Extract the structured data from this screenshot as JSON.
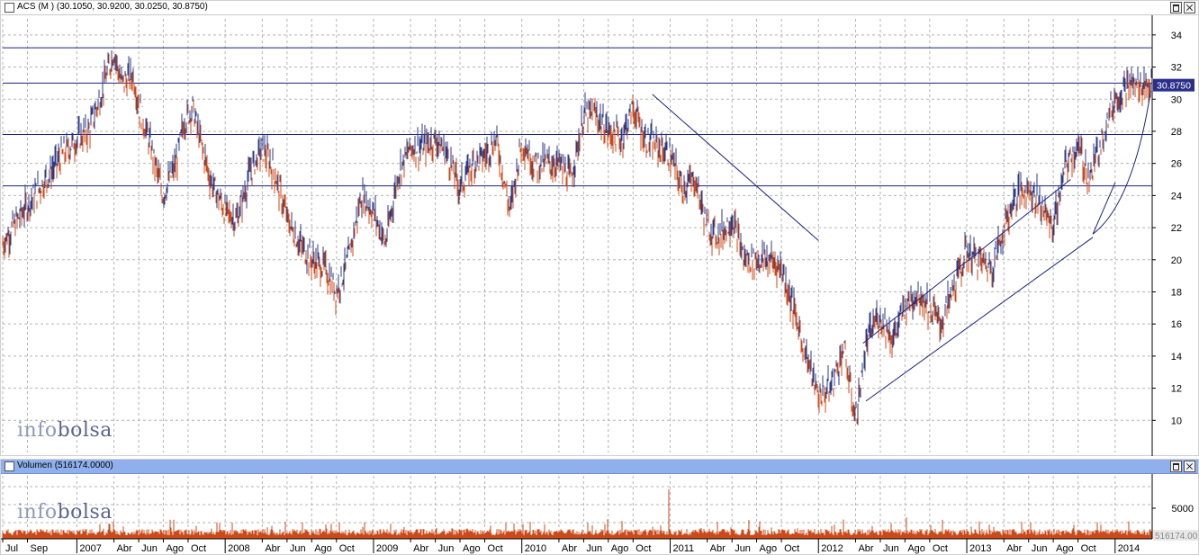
{
  "price_panel": {
    "title": "ACS (M ) (30.1050, 30.9200, 30.0250, 30.8750)",
    "last_price_label": "30.8750",
    "watermark_a": "info",
    "watermark_b": "bolsa"
  },
  "volume_panel": {
    "title": "Volumen (516174.0000)",
    "last_volume_label": "516174.00",
    "watermark_a": "info",
    "watermark_b": "bolsa"
  },
  "colors": {
    "up": "#2c3a86",
    "down": "#cc4a1a",
    "volume": "#cc4a1a",
    "trendline": "#1a237e",
    "grid": "#b4b4b4",
    "last_price_bg": "#2a2f8a"
  },
  "chart_data": [
    {
      "type": "line",
      "title": "ACS (M ) (30.1050, 30.9200, 30.0250, 30.8750)",
      "ylim": [
        8,
        35
      ],
      "y_ticks": [
        10,
        12,
        14,
        16,
        18,
        20,
        22,
        24,
        26,
        28,
        30,
        32,
        34
      ],
      "x_tick_labels": [
        "Jul",
        "Sep",
        "2007",
        "Abr",
        "Jun",
        "Ago",
        "Oct",
        "2008",
        "Abr",
        "Jun",
        "Ago",
        "Oct",
        "2009",
        "Abr",
        "Jun",
        "Ago",
        "Oct",
        "2010",
        "Abr",
        "Jun",
        "Ago",
        "Oct",
        "2011",
        "Abr",
        "Jun",
        "Ago",
        "Oct",
        "2012",
        "Abr",
        "Jun",
        "Ago",
        "Oct",
        "2013",
        "Abr",
        "Jun",
        "Ago",
        "Oct",
        "2014"
      ],
      "x_tick_dates": [
        2006.5,
        2006.667,
        2007.0,
        2007.25,
        2007.417,
        2007.583,
        2007.75,
        2008.0,
        2008.25,
        2008.417,
        2008.583,
        2008.75,
        2009.0,
        2009.25,
        2009.417,
        2009.583,
        2009.75,
        2010.0,
        2010.25,
        2010.417,
        2010.583,
        2010.75,
        2011.0,
        2011.25,
        2011.417,
        2011.583,
        2011.75,
        2012.0,
        2012.25,
        2012.417,
        2012.583,
        2012.75,
        2013.0,
        2013.25,
        2013.417,
        2013.583,
        2013.75,
        2014.0
      ],
      "x_range": [
        2006.5,
        2014.25
      ],
      "grid": true,
      "series": [
        {
          "x": [
            2006.5,
            2006.6,
            2006.75,
            2006.9,
            2007.0,
            2007.08,
            2007.17,
            2007.25,
            2007.3,
            2007.38,
            2007.42,
            2007.5,
            2007.58,
            2007.67,
            2007.72,
            2007.78,
            2007.83,
            2007.9,
            2008.0,
            2008.08,
            2008.17,
            2008.25,
            2008.33,
            2008.42,
            2008.5,
            2008.58,
            2008.67,
            2008.75,
            2008.83,
            2008.92,
            2009.0,
            2009.08,
            2009.17,
            2009.25,
            2009.33,
            2009.42,
            2009.5,
            2009.58,
            2009.67,
            2009.75,
            2009.83,
            2009.92,
            2010.0,
            2010.08,
            2010.17,
            2010.25,
            2010.33,
            2010.42,
            2010.5,
            2010.58,
            2010.67,
            2010.75,
            2010.83,
            2010.92,
            2011.0,
            2011.08,
            2011.17,
            2011.25,
            2011.33,
            2011.42,
            2011.5,
            2011.58,
            2011.67,
            2011.75,
            2011.83,
            2011.92,
            2012.0,
            2012.08,
            2012.17,
            2012.25,
            2012.33,
            2012.4,
            2012.45,
            2012.5,
            2012.58,
            2012.67,
            2012.75,
            2012.83,
            2012.92,
            2013.0,
            2013.08,
            2013.17,
            2013.25,
            2013.33,
            2013.42,
            2013.5,
            2013.58,
            2013.67,
            2013.75,
            2013.83,
            2013.92,
            2014.0,
            2014.08,
            2014.17,
            2014.25
          ],
          "values": [
            21.0,
            22.5,
            24.5,
            26.5,
            27.5,
            28.0,
            30.5,
            33.0,
            31.0,
            31.5,
            29.5,
            27.0,
            24.0,
            26.0,
            28.5,
            29.5,
            27.5,
            25.0,
            23.0,
            22.5,
            25.5,
            27.0,
            25.5,
            22.5,
            21.0,
            20.0,
            19.5,
            18.0,
            20.0,
            24.0,
            23.0,
            21.0,
            25.5,
            27.0,
            27.0,
            27.5,
            26.5,
            24.5,
            26.0,
            26.5,
            27.5,
            23.0,
            27.5,
            26.0,
            26.0,
            26.0,
            25.0,
            29.0,
            29.0,
            28.0,
            27.5,
            29.5,
            27.5,
            27.0,
            26.5,
            24.5,
            25.0,
            22.0,
            21.5,
            22.5,
            20.0,
            20.0,
            20.0,
            19.5,
            17.0,
            14.0,
            11.5,
            12.0,
            14.5,
            10.0,
            15.0,
            16.5,
            16.0,
            15.0,
            17.0,
            18.0,
            17.0,
            16.0,
            18.5,
            20.5,
            20.0,
            19.5,
            22.0,
            24.0,
            24.5,
            23.5,
            22.0,
            26.0,
            27.0,
            25.0,
            28.0,
            30.0,
            30.875,
            30.875,
            30.875
          ]
        }
      ]
    },
    {
      "type": "bar",
      "title": "Volumen (516174.0000)",
      "y_tick_labels": [
        "5000"
      ],
      "last_value": 516174.0
    }
  ]
}
